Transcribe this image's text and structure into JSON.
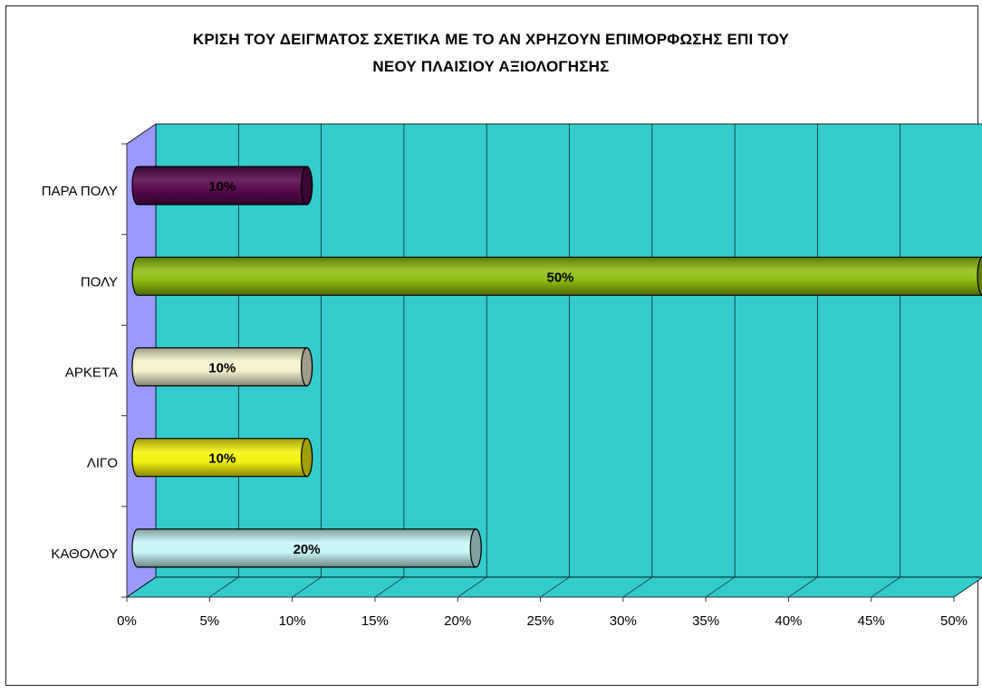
{
  "chart_data": {
    "type": "bar",
    "orientation": "horizontal",
    "title_line1": "ΚΡΙΣΗ ΤΟΥ ΔΕΙΓΜΑΤΟΣ ΣΧΕΤΙΚΑ ΜΕ ΤΟ ΑΝ ΧΡΗΖΟΥΝ ΕΠΙΜΟΡΦΩΣΗΣ ΕΠΙ ΤΟΥ",
    "title_line2": "ΝΕΟΥ ΠΛΑΙΣΙΟΥ ΑΞΙΟΛΟΓΗΣΗΣ",
    "categories": [
      "ΠΑΡΑ ΠΟΛΥ",
      "ΠΟΛΥ",
      "ΑΡΚΕΤΑ",
      "ΛΙΓΟ",
      "ΚΑΘΟΛΟΥ"
    ],
    "values": [
      10,
      50,
      10,
      10,
      20
    ],
    "data_labels": [
      "10%",
      "50%",
      "10%",
      "10%",
      "20%"
    ],
    "bar_colors": [
      "#5a0a4e",
      "#8fbf12",
      "#f5f1cf",
      "#f4f40f",
      "#c9f6f6"
    ],
    "xlim": [
      0,
      50
    ],
    "x_ticks": [
      "0%",
      "5%",
      "10%",
      "15%",
      "20%",
      "25%",
      "30%",
      "35%",
      "40%",
      "45%",
      "50%"
    ],
    "grid": true,
    "plot_background": "#33cccc",
    "wall_color": "#9999ff",
    "legend": "none"
  }
}
